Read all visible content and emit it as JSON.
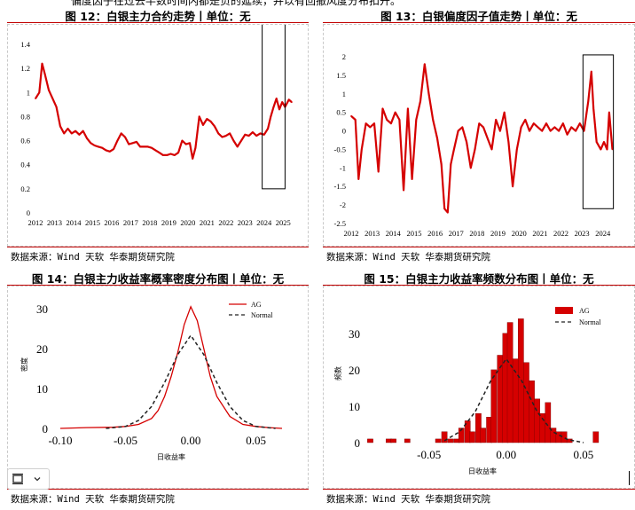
{
  "top_text": "偏度因子在过去半数时间内都是负的延续，并以有回撤风度分布扣开。",
  "panels": {
    "p12": {
      "title": "图 12：白银主力合约走势丨单位：无",
      "source": "数据来源：Wind 天软 华泰期货研究院"
    },
    "p13": {
      "title": "图 13：白银偏度因子值走势丨单位：无",
      "source": "数据来源：Wind 天软 华泰期货研究院"
    },
    "p14": {
      "title": "图 14：白银主力收益率概率密度分布图丨单位：无",
      "source": "数据来源：Wind 天软 华泰期货研究院"
    },
    "p15": {
      "title": "图 15：白银主力收益率频数分布图丨单位：无",
      "source": "数据来源：Wind 天软 华泰期货研究院"
    }
  },
  "colors": {
    "series": "#d50000",
    "normal": "#222222",
    "accent": "#c00000"
  },
  "toolbar": {
    "icon": "frame-icon",
    "dropdown": "chevron-down-icon"
  },
  "chart_data": [
    {
      "id": "p12",
      "type": "line",
      "ylim": [
        0,
        1.4
      ],
      "yticks": [
        "0",
        "0.2",
        "0.4",
        "0.6",
        "0.8",
        "1",
        "1.2",
        "1.4"
      ],
      "xticks": [
        "2012",
        "2013",
        "2014",
        "2015",
        "2016",
        "2017",
        "2018",
        "2019",
        "2020",
        "2021",
        "2022",
        "2023",
        "2024",
        "2025"
      ],
      "xlim": [
        2012,
        2025.5
      ],
      "series": [
        {
          "points": [
            [
              2012.0,
              0.95
            ],
            [
              2012.2,
              1.0
            ],
            [
              2012.35,
              1.24
            ],
            [
              2012.5,
              1.15
            ],
            [
              2012.7,
              1.02
            ],
            [
              2012.9,
              0.95
            ],
            [
              2013.1,
              0.88
            ],
            [
              2013.3,
              0.72
            ],
            [
              2013.5,
              0.66
            ],
            [
              2013.7,
              0.7
            ],
            [
              2013.9,
              0.66
            ],
            [
              2014.1,
              0.68
            ],
            [
              2014.3,
              0.65
            ],
            [
              2014.5,
              0.68
            ],
            [
              2014.7,
              0.62
            ],
            [
              2014.9,
              0.58
            ],
            [
              2015.1,
              0.56
            ],
            [
              2015.3,
              0.55
            ],
            [
              2015.5,
              0.54
            ],
            [
              2015.7,
              0.52
            ],
            [
              2015.9,
              0.51
            ],
            [
              2016.1,
              0.53
            ],
            [
              2016.3,
              0.6
            ],
            [
              2016.5,
              0.66
            ],
            [
              2016.7,
              0.63
            ],
            [
              2016.9,
              0.57
            ],
            [
              2017.1,
              0.58
            ],
            [
              2017.3,
              0.59
            ],
            [
              2017.5,
              0.55
            ],
            [
              2017.7,
              0.55
            ],
            [
              2017.9,
              0.55
            ],
            [
              2018.1,
              0.54
            ],
            [
              2018.3,
              0.52
            ],
            [
              2018.5,
              0.5
            ],
            [
              2018.7,
              0.48
            ],
            [
              2018.9,
              0.48
            ],
            [
              2019.1,
              0.49
            ],
            [
              2019.3,
              0.48
            ],
            [
              2019.5,
              0.5
            ],
            [
              2019.7,
              0.6
            ],
            [
              2019.9,
              0.57
            ],
            [
              2020.1,
              0.58
            ],
            [
              2020.25,
              0.45
            ],
            [
              2020.4,
              0.54
            ],
            [
              2020.6,
              0.8
            ],
            [
              2020.8,
              0.73
            ],
            [
              2021.0,
              0.78
            ],
            [
              2021.2,
              0.76
            ],
            [
              2021.4,
              0.72
            ],
            [
              2021.6,
              0.66
            ],
            [
              2021.8,
              0.63
            ],
            [
              2022.0,
              0.64
            ],
            [
              2022.2,
              0.66
            ],
            [
              2022.4,
              0.6
            ],
            [
              2022.6,
              0.55
            ],
            [
              2022.8,
              0.6
            ],
            [
              2023.0,
              0.65
            ],
            [
              2023.2,
              0.64
            ],
            [
              2023.4,
              0.67
            ],
            [
              2023.6,
              0.64
            ],
            [
              2023.8,
              0.66
            ],
            [
              2024.0,
              0.65
            ],
            [
              2024.2,
              0.7
            ],
            [
              2024.35,
              0.8
            ],
            [
              2024.5,
              0.88
            ],
            [
              2024.65,
              0.95
            ],
            [
              2024.8,
              0.86
            ],
            [
              2024.95,
              0.92
            ],
            [
              2025.1,
              0.88
            ],
            [
              2025.3,
              0.94
            ],
            [
              2025.45,
              0.92
            ]
          ]
        }
      ],
      "highlight_box": {
        "x0": 2023.9,
        "x1": 2025.1,
        "y0": 0.2,
        "y1": 1.64
      }
    },
    {
      "id": "p13",
      "type": "line",
      "ylim": [
        -2.5,
        2
      ],
      "yticks": [
        "-2.5",
        "-2",
        "-1.5",
        "-1",
        "-0.5",
        "0",
        "0.5",
        "1",
        "1.5",
        "2"
      ],
      "xticks": [
        "2012",
        "2013",
        "2014",
        "2015",
        "2016",
        "2017",
        "2018",
        "2019",
        "2020",
        "2021",
        "2022",
        "2023",
        "2024"
      ],
      "xlim": [
        2012,
        2024.6
      ],
      "series": [
        {
          "points": [
            [
              2012.0,
              0.4
            ],
            [
              2012.2,
              0.3
            ],
            [
              2012.35,
              -1.3
            ],
            [
              2012.5,
              -0.5
            ],
            [
              2012.7,
              0.2
            ],
            [
              2012.9,
              0.1
            ],
            [
              2013.1,
              0.2
            ],
            [
              2013.3,
              -1.1
            ],
            [
              2013.5,
              0.6
            ],
            [
              2013.7,
              0.3
            ],
            [
              2013.9,
              0.2
            ],
            [
              2014.1,
              0.5
            ],
            [
              2014.3,
              0.3
            ],
            [
              2014.5,
              -1.6
            ],
            [
              2014.7,
              0.6
            ],
            [
              2014.9,
              -1.3
            ],
            [
              2015.1,
              0.3
            ],
            [
              2015.3,
              0.8
            ],
            [
              2015.5,
              1.8
            ],
            [
              2015.7,
              1.0
            ],
            [
              2015.9,
              0.3
            ],
            [
              2016.1,
              -0.2
            ],
            [
              2016.3,
              -0.9
            ],
            [
              2016.45,
              -2.1
            ],
            [
              2016.6,
              -2.2
            ],
            [
              2016.75,
              -0.9
            ],
            [
              2016.9,
              -0.5
            ],
            [
              2017.1,
              0.0
            ],
            [
              2017.3,
              0.1
            ],
            [
              2017.5,
              -0.3
            ],
            [
              2017.7,
              -1.0
            ],
            [
              2017.9,
              -0.5
            ],
            [
              2018.1,
              0.2
            ],
            [
              2018.3,
              0.1
            ],
            [
              2018.5,
              -0.2
            ],
            [
              2018.7,
              -0.5
            ],
            [
              2018.9,
              0.3
            ],
            [
              2019.1,
              0.0
            ],
            [
              2019.3,
              0.5
            ],
            [
              2019.5,
              -0.3
            ],
            [
              2019.7,
              -1.5
            ],
            [
              2019.9,
              -0.5
            ],
            [
              2020.1,
              0.1
            ],
            [
              2020.3,
              0.3
            ],
            [
              2020.5,
              0.0
            ],
            [
              2020.7,
              0.2
            ],
            [
              2020.9,
              0.1
            ],
            [
              2021.1,
              0.0
            ],
            [
              2021.3,
              0.2
            ],
            [
              2021.5,
              0.0
            ],
            [
              2021.7,
              0.1
            ],
            [
              2021.9,
              0.0
            ],
            [
              2022.1,
              0.2
            ],
            [
              2022.3,
              -0.1
            ],
            [
              2022.5,
              0.1
            ],
            [
              2022.7,
              0.0
            ],
            [
              2022.9,
              0.2
            ],
            [
              2023.1,
              0.0
            ],
            [
              2023.3,
              0.8
            ],
            [
              2023.45,
              1.6
            ],
            [
              2023.55,
              0.6
            ],
            [
              2023.7,
              -0.3
            ],
            [
              2023.9,
              -0.5
            ],
            [
              2024.05,
              -0.3
            ],
            [
              2024.2,
              -0.5
            ],
            [
              2024.3,
              0.5
            ],
            [
              2024.45,
              -0.5
            ]
          ]
        }
      ],
      "highlight_box": {
        "x0": 2023.05,
        "x1": 2024.5,
        "y0": -2.1,
        "y1": 2.05
      }
    },
    {
      "id": "p14",
      "type": "line",
      "xlabel": "日收益率",
      "ylabel": "密度",
      "xlim": [
        -0.1,
        0.07
      ],
      "ylim": [
        0,
        32
      ],
      "xticks": [
        "-0.10",
        "-0.05",
        "0.00",
        "0.05"
      ],
      "yticks": [
        "0",
        "10",
        "20",
        "30"
      ],
      "legend": "top-right",
      "series": [
        {
          "name": "AG",
          "style": "solid",
          "points": [
            [
              -0.1,
              0.0
            ],
            [
              -0.08,
              0.2
            ],
            [
              -0.06,
              0.3
            ],
            [
              -0.05,
              0.5
            ],
            [
              -0.04,
              1.0
            ],
            [
              -0.03,
              2.5
            ],
            [
              -0.025,
              4.5
            ],
            [
              -0.02,
              8.0
            ],
            [
              -0.015,
              13.0
            ],
            [
              -0.01,
              19.0
            ],
            [
              -0.005,
              26.0
            ],
            [
              0.0,
              30.5
            ],
            [
              0.005,
              27.0
            ],
            [
              0.01,
              20.0
            ],
            [
              0.015,
              13.0
            ],
            [
              0.02,
              8.0
            ],
            [
              0.03,
              3.0
            ],
            [
              0.04,
              1.0
            ],
            [
              0.05,
              0.5
            ],
            [
              0.06,
              0.2
            ],
            [
              0.07,
              0.0
            ]
          ]
        },
        {
          "name": "Normal",
          "style": "dashed",
          "points": [
            [
              -0.065,
              0.0
            ],
            [
              -0.05,
              0.5
            ],
            [
              -0.04,
              2.0
            ],
            [
              -0.03,
              5.5
            ],
            [
              -0.02,
              11.5
            ],
            [
              -0.01,
              18.5
            ],
            [
              0.0,
              23.3
            ],
            [
              0.01,
              18.5
            ],
            [
              0.02,
              11.5
            ],
            [
              0.03,
              5.5
            ],
            [
              0.04,
              2.0
            ],
            [
              0.05,
              0.5
            ],
            [
              0.065,
              0.0
            ]
          ]
        }
      ]
    },
    {
      "id": "p15",
      "type": "bar",
      "xlabel": "日收益率",
      "ylabel": "频数",
      "xlim": [
        -0.09,
        0.065
      ],
      "ylim": [
        0,
        38
      ],
      "xticks": [
        "-0.05",
        "0.00",
        "0.05"
      ],
      "yticks": [
        "0",
        "10",
        "20",
        "30"
      ],
      "legend": "top-right",
      "series": [
        {
          "name": "AG",
          "bin_width": 0.0036,
          "bins": [
            [
              -0.088,
              1
            ],
            [
              -0.076,
              1
            ],
            [
              -0.073,
              1
            ],
            [
              -0.064,
              1
            ],
            [
              -0.044,
              1
            ],
            [
              -0.04,
              3
            ],
            [
              -0.036,
              1
            ],
            [
              -0.032,
              1
            ],
            [
              -0.029,
              4
            ],
            [
              -0.025,
              6
            ],
            [
              -0.022,
              3
            ],
            [
              -0.018,
              8
            ],
            [
              -0.015,
              4
            ],
            [
              -0.011,
              7
            ],
            [
              -0.008,
              20
            ],
            [
              -0.004,
              24
            ],
            [
              -0.0005,
              30
            ],
            [
              0.0025,
              33
            ],
            [
              0.006,
              23
            ],
            [
              0.0095,
              34
            ],
            [
              0.013,
              22
            ],
            [
              0.0165,
              17
            ],
            [
              0.02,
              12
            ],
            [
              0.0235,
              8
            ],
            [
              0.027,
              11
            ],
            [
              0.0305,
              4
            ],
            [
              0.034,
              3
            ],
            [
              0.0375,
              3
            ],
            [
              0.041,
              1
            ],
            [
              0.058,
              3
            ]
          ]
        },
        {
          "name": "Normal",
          "style": "dashed",
          "points": [
            [
              -0.04,
              0.5
            ],
            [
              -0.03,
              3.0
            ],
            [
              -0.02,
              8.5
            ],
            [
              -0.01,
              17.0
            ],
            [
              0.0,
              23.0
            ],
            [
              0.01,
              17.0
            ],
            [
              0.02,
              8.5
            ],
            [
              0.03,
              3.0
            ],
            [
              0.04,
              0.8
            ],
            [
              0.05,
              0.0
            ]
          ]
        }
      ]
    }
  ]
}
